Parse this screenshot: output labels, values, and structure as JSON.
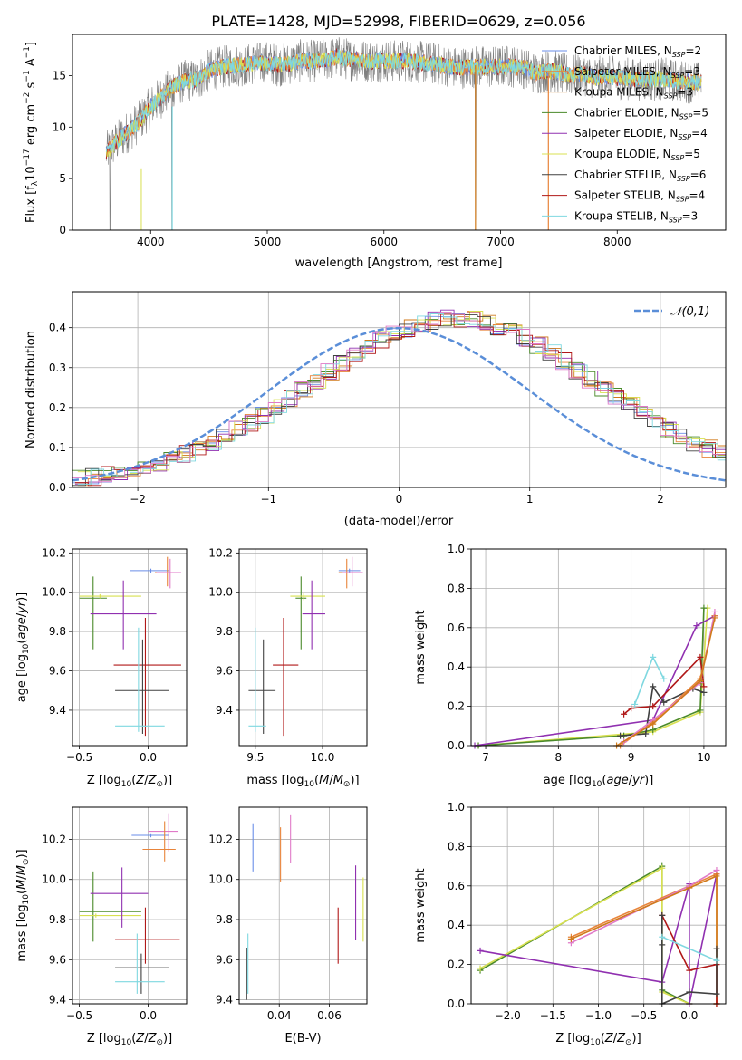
{
  "figure": {
    "title": "PLATE=1428, MJD=52998, FIBERID=0629, z=0.056"
  },
  "colors": {
    "Chabrier MILES": "#6a8ee8",
    "Salpeter MILES": "#e8843a",
    "Kroupa MILES": "#d07a1a",
    "Chabrier ELODIE": "#4a8a2a",
    "Salpeter ELODIE": "#9030b0",
    "Kroupa ELODIE": "#d8e050",
    "Chabrier STELIB": "#404040",
    "Salpeter STELIB": "#b01818",
    "Kroupa STELIB": "#7fd8e0",
    "pink": "#e07ac8",
    "gray": "#808080",
    "normal": "#5a8ed8"
  },
  "chart_data": [
    {
      "id": "spectrum",
      "type": "line",
      "xlabel": "wavelength [Angstrom, rest frame]",
      "ylabel": "Flux [f",
      "xlim": [
        3330,
        8930
      ],
      "ylim": [
        0,
        19
      ],
      "xticks": [
        4000,
        5000,
        6000,
        7000,
        8000
      ],
      "yticks": [
        0,
        5,
        10,
        15
      ],
      "continuum": [
        [
          3620,
          7.5
        ],
        [
          3700,
          8.5
        ],
        [
          3800,
          9.5
        ],
        [
          3900,
          10.5
        ],
        [
          4000,
          12.0
        ],
        [
          4100,
          13.0
        ],
        [
          4200,
          14.0
        ],
        [
          4300,
          14.5
        ],
        [
          4400,
          14.6
        ],
        [
          4500,
          15.5
        ],
        [
          4600,
          15.8
        ],
        [
          4700,
          16.0
        ],
        [
          4800,
          16.0
        ],
        [
          4900,
          16.2
        ],
        [
          5000,
          16.3
        ],
        [
          5100,
          16.0
        ],
        [
          5200,
          16.2
        ],
        [
          5300,
          16.5
        ],
        [
          5400,
          16.4
        ],
        [
          5500,
          16.5
        ],
        [
          5600,
          16.8
        ],
        [
          5700,
          16.6
        ],
        [
          5800,
          16.5
        ],
        [
          5900,
          16.4
        ],
        [
          6000,
          16.5
        ],
        [
          6100,
          16.4
        ],
        [
          6200,
          16.5
        ],
        [
          6300,
          16.3
        ],
        [
          6400,
          16.2
        ],
        [
          6500,
          16.0
        ],
        [
          6600,
          15.8
        ],
        [
          6700,
          15.8
        ],
        [
          6800,
          15.9
        ],
        [
          6900,
          15.8
        ],
        [
          7000,
          15.9
        ],
        [
          7100,
          15.9
        ],
        [
          7200,
          15.8
        ],
        [
          7300,
          15.2
        ],
        [
          7400,
          15.5
        ],
        [
          7500,
          15.3
        ],
        [
          7600,
          15.0
        ],
        [
          7700,
          15.2
        ],
        [
          7800,
          14.8
        ],
        [
          7900,
          14.9
        ],
        [
          8000,
          14.8
        ],
        [
          8100,
          14.7
        ],
        [
          8200,
          14.6
        ],
        [
          8300,
          14.6
        ],
        [
          8400,
          14.7
        ],
        [
          8500,
          14.5
        ],
        [
          8600,
          14.4
        ],
        [
          8700,
          14.3
        ]
      ],
      "legend": [
        {
          "name": "Chabrier MILES, N",
          "nssp": "2"
        },
        {
          "name": "Salpeter MILES, N",
          "nssp": "3"
        },
        {
          "name": "Kroupa MILES, N",
          "nssp": "3"
        },
        {
          "name": "Chabrier ELODIE, N",
          "nssp": "5"
        },
        {
          "name": "Salpeter ELODIE, N",
          "nssp": "4"
        },
        {
          "name": "Kroupa ELODIE, N",
          "nssp": "5"
        },
        {
          "name": "Chabrier STELIB, N",
          "nssp": "6"
        },
        {
          "name": "Salpeter STELIB, N",
          "nssp": "4"
        },
        {
          "name": "Kroupa STELIB, N",
          "nssp": "3"
        }
      ],
      "legend_sub": "SSP",
      "legend_placement": "upper-right"
    },
    {
      "id": "residuals",
      "type": "histogram",
      "xlabel": "(data-model)/error",
      "ylabel": "Normed distribution",
      "xlim": [
        -2.5,
        2.5
      ],
      "ylim": [
        0,
        0.49
      ],
      "xticks": [
        -2,
        -1,
        0,
        1,
        2
      ],
      "yticks": [
        0.0,
        0.1,
        0.2,
        0.3,
        0.4
      ],
      "grid": true,
      "bin_width": 0.1,
      "envelope": [
        0.022,
        0.025,
        0.03,
        0.036,
        0.043,
        0.051,
        0.06,
        0.071,
        0.083,
        0.096,
        0.111,
        0.127,
        0.144,
        0.162,
        0.182,
        0.202,
        0.223,
        0.245,
        0.266,
        0.288,
        0.309,
        0.33,
        0.35,
        0.368,
        0.384,
        0.398,
        0.41,
        0.418,
        0.423,
        0.424,
        0.421,
        0.414,
        0.404,
        0.391,
        0.375,
        0.357,
        0.337,
        0.316,
        0.294,
        0.271,
        0.249,
        0.227,
        0.205,
        0.184,
        0.164,
        0.145,
        0.127,
        0.111,
        0.096,
        0.083
      ],
      "legend": "𝒩(0,1)",
      "legend_placement": "upper-right"
    },
    {
      "id": "age-vs-Z",
      "type": "errorbar",
      "xlabel": "Z [log",
      "ylabel": "age  [log",
      "xlim": [
        -0.55,
        0.28
      ],
      "ylim": [
        9.22,
        10.22
      ],
      "xticks": [
        -0.5,
        0.0
      ],
      "yticks": [
        9.4,
        9.6,
        9.8,
        10.0,
        10.2
      ],
      "grid": true,
      "points": [
        {
          "s": "Chabrier MILES",
          "x": 0.02,
          "y": 10.11,
          "xl": -0.13,
          "xh": 0.15,
          "yl": 10.1,
          "yh": 10.12
        },
        {
          "s": "Salpeter MILES",
          "x": 0.14,
          "y": 10.1,
          "xl": 0.05,
          "xh": 0.22,
          "yl": 10.03,
          "yh": 10.18
        },
        {
          "s": "pink",
          "x": 0.16,
          "y": 10.1,
          "xl": 0.06,
          "xh": 0.24,
          "yl": 10.02,
          "yh": 10.17
        },
        {
          "s": "Chabrier ELODIE",
          "x": -0.4,
          "y": 9.97,
          "xl": -0.5,
          "xh": -0.3,
          "yl": 9.71,
          "yh": 10.08
        },
        {
          "s": "Kroupa ELODIE",
          "x": -0.35,
          "y": 9.98,
          "xl": -0.5,
          "xh": -0.05,
          "yl": 9.97,
          "yh": 9.99
        },
        {
          "s": "Salpeter ELODIE",
          "x": -0.18,
          "y": 9.89,
          "xl": -0.42,
          "xh": 0.06,
          "yl": 9.71,
          "yh": 10.06
        },
        {
          "s": "Salpeter STELIB",
          "x": -0.02,
          "y": 9.63,
          "xl": -0.25,
          "xh": 0.24,
          "yl": 9.27,
          "yh": 9.87
        },
        {
          "s": "Chabrier STELIB",
          "x": -0.04,
          "y": 9.5,
          "xl": -0.24,
          "xh": 0.15,
          "yl": 9.28,
          "yh": 9.76
        },
        {
          "s": "Kroupa STELIB",
          "x": -0.07,
          "y": 9.32,
          "xl": -0.24,
          "xh": 0.12,
          "yl": 9.29,
          "yh": 9.82
        }
      ]
    },
    {
      "id": "age-vs-mass",
      "type": "errorbar",
      "xlabel": "mass [log",
      "ylabel": "",
      "xlim": [
        9.38,
        10.33
      ],
      "ylim": [
        9.22,
        10.22
      ],
      "xticks": [
        9.5,
        10.0
      ],
      "yticks": [
        9.4,
        9.6,
        9.8,
        10.0,
        10.2
      ],
      "grid": true,
      "points": [
        {
          "s": "Chabrier MILES",
          "x": 10.2,
          "y": 10.11,
          "xl": 10.12,
          "xh": 10.28,
          "yl": 10.1,
          "yh": 10.12
        },
        {
          "s": "Salpeter MILES",
          "x": 10.18,
          "y": 10.1,
          "xl": 10.12,
          "xh": 10.27,
          "yl": 10.02,
          "yh": 10.17
        },
        {
          "s": "pink",
          "x": 10.22,
          "y": 10.1,
          "xl": 10.15,
          "xh": 10.3,
          "yl": 10.03,
          "yh": 10.18
        },
        {
          "s": "Chabrier ELODIE",
          "x": 9.84,
          "y": 9.97,
          "xl": 9.8,
          "xh": 9.88,
          "yl": 9.71,
          "yh": 10.08
        },
        {
          "s": "Kroupa ELODIE",
          "x": 9.86,
          "y": 9.98,
          "xl": 9.76,
          "xh": 10.02,
          "yl": 9.96,
          "yh": 10.0
        },
        {
          "s": "Salpeter ELODIE",
          "x": 9.92,
          "y": 9.89,
          "xl": 9.85,
          "xh": 10.02,
          "yl": 9.71,
          "yh": 10.06
        },
        {
          "s": "Salpeter STELIB",
          "x": 9.71,
          "y": 9.63,
          "xl": 9.63,
          "xh": 9.82,
          "yl": 9.27,
          "yh": 9.87
        },
        {
          "s": "Chabrier STELIB",
          "x": 9.56,
          "y": 9.5,
          "xl": 9.45,
          "xh": 9.65,
          "yl": 9.28,
          "yh": 9.76
        },
        {
          "s": "Kroupa STELIB",
          "x": 9.5,
          "y": 9.32,
          "xl": 9.45,
          "xh": 9.58,
          "yl": 9.29,
          "yh": 9.82
        }
      ]
    },
    {
      "id": "weight-vs-age",
      "type": "line",
      "xlabel": "age  [log",
      "ylabel": "mass weight",
      "xlim": [
        6.8,
        10.3
      ],
      "ylim": [
        0,
        1.0
      ],
      "xticks": [
        7,
        8,
        9,
        10
      ],
      "yticks": [
        0.0,
        0.2,
        0.4,
        0.6,
        0.8,
        1.0
      ],
      "grid": true,
      "series": [
        {
          "s": "Kroupa ELODIE",
          "x": [
            6.9,
            9.3,
            9.95,
            10.05
          ],
          "y": [
            0.0,
            0.07,
            0.17,
            0.7
          ]
        },
        {
          "s": "Chabrier ELODIE",
          "x": [
            6.9,
            8.9,
            9.3,
            9.95,
            10.0
          ],
          "y": [
            0.0,
            0.05,
            0.08,
            0.18,
            0.7
          ]
        },
        {
          "s": "Salpeter ELODIE",
          "x": [
            6.85,
            9.3,
            9.9,
            10.15
          ],
          "y": [
            0.0,
            0.13,
            0.61,
            0.66
          ]
        },
        {
          "s": "Salpeter STELIB",
          "x": [
            8.9,
            9.0,
            9.3,
            9.95,
            10.0
          ],
          "y": [
            0.16,
            0.19,
            0.2,
            0.45,
            0.3
          ]
        },
        {
          "s": "Chabrier STELIB",
          "x": [
            8.85,
            9.2,
            9.3,
            9.45,
            9.85,
            10.0
          ],
          "y": [
            0.05,
            0.06,
            0.3,
            0.22,
            0.29,
            0.27
          ]
        },
        {
          "s": "Kroupa STELIB",
          "x": [
            9.05,
            9.3,
            9.45
          ],
          "y": [
            0.21,
            0.45,
            0.34
          ]
        },
        {
          "s": "Salpeter MILES",
          "x": [
            8.85,
            9.3,
            9.95,
            10.15
          ],
          "y": [
            0.0,
            0.12,
            0.34,
            0.66
          ]
        },
        {
          "s": "pink",
          "x": [
            8.9,
            9.3,
            9.95,
            10.15
          ],
          "y": [
            0.02,
            0.13,
            0.32,
            0.68
          ]
        },
        {
          "s": "Kroupa MILES",
          "x": [
            8.8,
            9.3,
            9.95,
            10.15
          ],
          "y": [
            0.0,
            0.11,
            0.33,
            0.65
          ]
        }
      ]
    },
    {
      "id": "mass-vs-Z",
      "type": "errorbar",
      "xlabel": "Z [log",
      "ylabel": "mass [log",
      "xlim": [
        -0.55,
        0.28
      ],
      "ylim": [
        9.38,
        10.36
      ],
      "xticks": [
        -0.5,
        0.0
      ],
      "yticks": [
        9.4,
        9.6,
        9.8,
        10.0,
        10.2
      ],
      "grid": true,
      "points": [
        {
          "s": "Chabrier MILES",
          "x": 0.02,
          "y": 10.22,
          "xl": -0.12,
          "xh": 0.15,
          "yl": 10.21,
          "yh": 10.23
        },
        {
          "s": "pink",
          "x": 0.15,
          "y": 10.24,
          "xl": 0.0,
          "xh": 0.22,
          "yl": 10.14,
          "yh": 10.33
        },
        {
          "s": "Salpeter MILES",
          "x": 0.12,
          "y": 10.15,
          "xl": -0.04,
          "xh": 0.2,
          "yl": 10.09,
          "yh": 10.29
        },
        {
          "s": "Chabrier ELODIE",
          "x": -0.4,
          "y": 9.84,
          "xl": -0.5,
          "xh": -0.05,
          "yl": 9.69,
          "yh": 10.04
        },
        {
          "s": "Kroupa ELODIE",
          "x": -0.38,
          "y": 9.82,
          "xl": -0.5,
          "xh": -0.05,
          "yl": 9.81,
          "yh": 9.83
        },
        {
          "s": "Salpeter ELODIE",
          "x": -0.19,
          "y": 9.93,
          "xl": -0.42,
          "xh": 0.0,
          "yl": 9.76,
          "yh": 10.06
        },
        {
          "s": "Salpeter STELIB",
          "x": -0.02,
          "y": 9.7,
          "xl": -0.24,
          "xh": 0.23,
          "yl": 9.58,
          "yh": 9.86
        },
        {
          "s": "Chabrier STELIB",
          "x": -0.05,
          "y": 9.56,
          "xl": -0.24,
          "xh": 0.15,
          "yl": 9.43,
          "yh": 9.63
        },
        {
          "s": "Kroupa STELIB",
          "x": -0.08,
          "y": 9.49,
          "xl": -0.24,
          "xh": 0.12,
          "yl": 9.43,
          "yh": 9.73
        }
      ]
    },
    {
      "id": "mass-vs-EBV",
      "type": "errorbar",
      "xlabel": "E(B-V)",
      "ylabel": "",
      "xlim": [
        0.024,
        0.075
      ],
      "ylim": [
        9.38,
        10.36
      ],
      "xticks": [
        0.04,
        0.06
      ],
      "yticks": [
        9.4,
        9.6,
        9.8,
        10.0,
        10.2
      ],
      "grid": true,
      "points": [
        {
          "s": "Chabrier MILES",
          "x": 0.0295,
          "y": 10.17,
          "yl": 10.04,
          "yh": 10.28
        },
        {
          "s": "Salpeter MILES",
          "x": 0.0405,
          "y": 10.13,
          "yl": 9.99,
          "yh": 10.26
        },
        {
          "s": "pink",
          "x": 0.0445,
          "y": 10.2,
          "yl": 10.08,
          "yh": 10.32
        },
        {
          "s": "Salpeter ELODIE",
          "x": 0.0705,
          "y": 9.88,
          "yl": 9.7,
          "yh": 10.07
        },
        {
          "s": "Kroupa ELODIE",
          "x": 0.0735,
          "y": 9.85,
          "yl": 9.69,
          "yh": 10.01
        },
        {
          "s": "Salpeter STELIB",
          "x": 0.0635,
          "y": 9.72,
          "yl": 9.58,
          "yh": 9.86
        },
        {
          "s": "Kroupa STELIB",
          "x": 0.0275,
          "y": 9.59,
          "yl": 9.43,
          "yh": 9.73
        },
        {
          "s": "Chabrier STELIB",
          "x": 0.027,
          "y": 9.52,
          "yl": 9.4,
          "yh": 9.66
        }
      ]
    },
    {
      "id": "weight-vs-Z",
      "type": "line",
      "xlabel": "Z [log",
      "ylabel": "mass weight",
      "xlim": [
        -2.4,
        0.4
      ],
      "ylim": [
        0,
        1.0
      ],
      "xticks": [
        -2.0,
        -1.5,
        -1.0,
        -0.5,
        0.0
      ],
      "yticks": [
        0.0,
        0.2,
        0.4,
        0.6,
        0.8,
        1.0
      ],
      "grid": true,
      "series": [
        {
          "s": "Chabrier ELODIE",
          "x": [
            -2.3,
            -0.3,
            -0.3,
            0.0
          ],
          "y": [
            0.17,
            0.7,
            0.07,
            0.0
          ]
        },
        {
          "s": "Kroupa ELODIE",
          "x": [
            -2.3,
            -0.3,
            -0.3,
            0.0
          ],
          "y": [
            0.18,
            0.69,
            0.06,
            0.0
          ]
        },
        {
          "s": "Salpeter ELODIE",
          "x": [
            -2.3,
            -0.3,
            0.0,
            0.0,
            0.3
          ],
          "y": [
            0.27,
            0.11,
            0.61,
            0.0,
            0.66
          ]
        },
        {
          "s": "Salpeter MILES",
          "x": [
            -1.3,
            0.0,
            0.3,
            0.3
          ],
          "y": [
            0.34,
            0.6,
            0.66,
            0.0
          ]
        },
        {
          "s": "pink",
          "x": [
            -1.3,
            0.0,
            0.3
          ],
          "y": [
            0.31,
            0.6,
            0.68
          ]
        },
        {
          "s": "Kroupa MILES",
          "x": [
            -1.3,
            0.0,
            0.3,
            0.3
          ],
          "y": [
            0.33,
            0.59,
            0.65,
            0.0
          ]
        },
        {
          "s": "Salpeter STELIB",
          "x": [
            -0.3,
            0.0,
            0.3,
            0.3
          ],
          "y": [
            0.45,
            0.17,
            0.2,
            0.0
          ]
        },
        {
          "s": "Chabrier STELIB",
          "x": [
            -0.3,
            -0.3,
            -0.3,
            0.0,
            0.3,
            0.3
          ],
          "y": [
            0.3,
            0.45,
            0.0,
            0.06,
            0.05,
            0.28
          ]
        },
        {
          "s": "Kroupa STELIB",
          "x": [
            -0.3,
            0.3
          ],
          "y": [
            0.34,
            0.22
          ]
        }
      ]
    }
  ]
}
